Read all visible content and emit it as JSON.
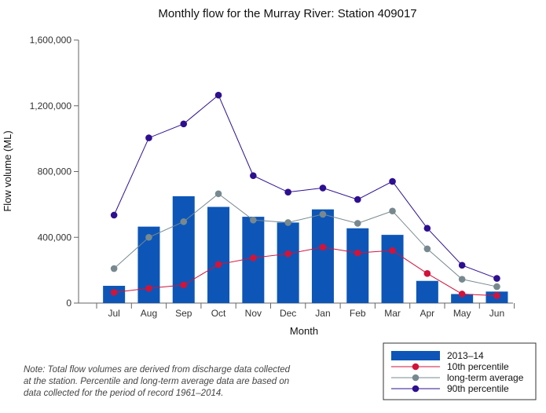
{
  "chart_data": {
    "type": "bar",
    "title": "Monthly flow for the Murray River: Station 409017",
    "xlabel": "Month",
    "ylabel": "Flow volume (ML)",
    "ylim": [
      0,
      1600000
    ],
    "yticks": [
      "0",
      "400,000",
      "800,000",
      "1,200,000",
      "1,600,000"
    ],
    "ytick_values": [
      0,
      400000,
      800000,
      1200000,
      1600000
    ],
    "grid": false,
    "legend_position": "bottom-right",
    "categories": [
      "Jul",
      "Aug",
      "Sep",
      "Oct",
      "Nov",
      "Dec",
      "Jan",
      "Feb",
      "Mar",
      "Apr",
      "May",
      "Jun"
    ],
    "series": [
      {
        "name": "2013–14",
        "kind": "bar",
        "color": "#0d56b8",
        "values": [
          105000,
          465000,
          650000,
          585000,
          525000,
          490000,
          570000,
          455000,
          415000,
          135000,
          55000,
          70000
        ]
      },
      {
        "name": "10th percentile",
        "kind": "line",
        "color": "#d0143a",
        "values": [
          65000,
          90000,
          110000,
          235000,
          275000,
          300000,
          340000,
          305000,
          320000,
          180000,
          55000,
          45000
        ]
      },
      {
        "name": "long-term average",
        "kind": "line",
        "color": "#77898f",
        "values": [
          210000,
          400000,
          495000,
          665000,
          505000,
          490000,
          540000,
          485000,
          560000,
          330000,
          145000,
          100000
        ]
      },
      {
        "name": "90th percentile",
        "kind": "line",
        "color": "#2d0f8f",
        "values": [
          535000,
          1005000,
          1090000,
          1265000,
          775000,
          675000,
          700000,
          630000,
          740000,
          455000,
          230000,
          150000
        ]
      }
    ]
  },
  "note": [
    "Note: Total flow volumes are derived from discharge data collected",
    "at the station. Percentile and long-term average data are based on",
    "data collected for the period of record 1961–2014."
  ]
}
